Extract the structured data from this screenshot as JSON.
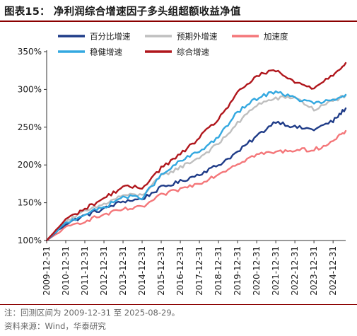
{
  "figure": {
    "title": "图表15： 净利润综合增速因子多头组超额收益净值"
  },
  "notes": {
    "period": "注：回测区间为 2009-12-31 至 2025-08-29。",
    "source": "资料来源：Wind，华泰研究"
  },
  "chart_data": {
    "type": "line",
    "title": "",
    "xlabel": "",
    "ylabel": "",
    "x": [
      "2009-12-31",
      "2010-12-31",
      "2011-12-31",
      "2012-12-31",
      "2013-12-31",
      "2014-12-31",
      "2015-12-31",
      "2016-12-31",
      "2017-12-31",
      "2018-12-31",
      "2019-12-31",
      "2020-12-31",
      "2021-12-31",
      "2022-12-31",
      "2023-12-31",
      "2024-12-31",
      "2025-08-29"
    ],
    "xticks": [
      "2009-12-31",
      "2010-12-31",
      "2011-12-31",
      "2012-12-31",
      "2013-12-31",
      "2014-12-31",
      "2015-12-31",
      "2016-12-31",
      "2017-12-31",
      "2018-12-31",
      "2019-12-31",
      "2020-12-31",
      "2021-12-31",
      "2022-12-31",
      "2023-12-31",
      "2024-12-31"
    ],
    "yticks": [
      "100%",
      "150%",
      "200%",
      "250%",
      "300%",
      "350%"
    ],
    "ylim": [
      1.0,
      3.5
    ],
    "legend_position": "top-left",
    "series": [
      {
        "name": "百分比增速",
        "color": "#1f3c88",
        "values": [
          1.0,
          1.22,
          1.33,
          1.42,
          1.52,
          1.55,
          1.7,
          1.78,
          1.88,
          2.0,
          2.17,
          2.38,
          2.58,
          2.5,
          2.47,
          2.58,
          2.75
        ]
      },
      {
        "name": "预期外增速",
        "color": "#bfbfbf",
        "values": [
          1.0,
          1.26,
          1.38,
          1.48,
          1.6,
          1.6,
          1.85,
          1.97,
          2.1,
          2.28,
          2.55,
          2.8,
          2.88,
          2.9,
          2.73,
          2.85,
          2.92
        ]
      },
      {
        "name": "加速度",
        "color": "#f4777a",
        "values": [
          1.0,
          1.17,
          1.26,
          1.34,
          1.41,
          1.44,
          1.6,
          1.68,
          1.76,
          1.88,
          2.02,
          2.14,
          2.17,
          2.2,
          2.2,
          2.31,
          2.45
        ]
      },
      {
        "name": "稳健增速",
        "color": "#33a8e0",
        "values": [
          1.0,
          1.23,
          1.35,
          1.44,
          1.58,
          1.57,
          1.86,
          2.05,
          2.18,
          2.37,
          2.7,
          2.88,
          2.98,
          2.88,
          2.82,
          2.85,
          2.93
        ]
      },
      {
        "name": "综合增速",
        "color": "#b0161c",
        "values": [
          1.0,
          1.28,
          1.42,
          1.56,
          1.71,
          1.7,
          1.96,
          2.14,
          2.36,
          2.61,
          2.95,
          3.18,
          3.25,
          3.09,
          3.02,
          3.2,
          3.35
        ]
      }
    ]
  }
}
